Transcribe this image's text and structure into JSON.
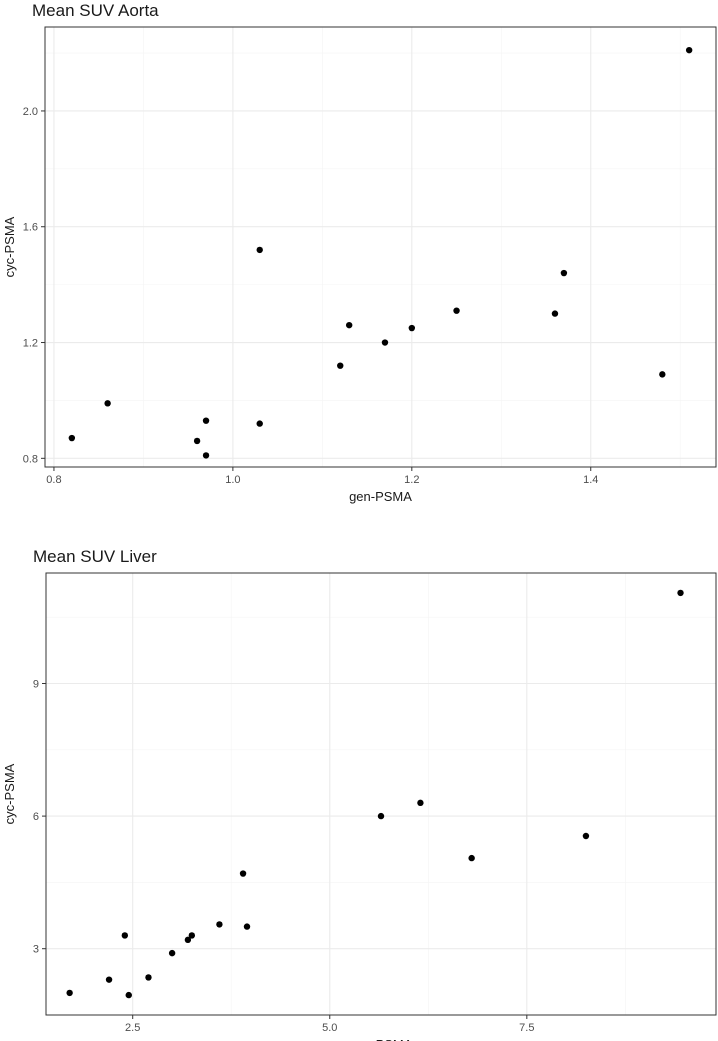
{
  "chart_data": [
    {
      "type": "scatter",
      "title": "Mean SUV Aorta",
      "xlabel": "gen-PSMA",
      "ylabel": "cyc-PSMA",
      "xlim": [
        0.79,
        1.54
      ],
      "ylim": [
        0.77,
        2.29
      ],
      "xticks": [
        0.8,
        1.0,
        1.2,
        1.4
      ],
      "yticks": [
        0.8,
        1.2,
        1.6,
        2.0
      ],
      "xtick_labels": [
        "0.8",
        "1.0",
        "1.2",
        "1.4"
      ],
      "ytick_labels": [
        "0.8",
        "1.2",
        "1.6",
        "2.0"
      ],
      "grid": true,
      "points": [
        {
          "x": 0.82,
          "y": 0.87
        },
        {
          "x": 0.86,
          "y": 0.99
        },
        {
          "x": 0.96,
          "y": 0.86
        },
        {
          "x": 0.97,
          "y": 0.93
        },
        {
          "x": 0.97,
          "y": 0.81
        },
        {
          "x": 1.03,
          "y": 1.52
        },
        {
          "x": 1.03,
          "y": 0.92
        },
        {
          "x": 1.12,
          "y": 1.12
        },
        {
          "x": 1.13,
          "y": 1.26
        },
        {
          "x": 1.17,
          "y": 1.2
        },
        {
          "x": 1.2,
          "y": 1.25
        },
        {
          "x": 1.25,
          "y": 1.31
        },
        {
          "x": 1.36,
          "y": 1.3
        },
        {
          "x": 1.37,
          "y": 1.44
        },
        {
          "x": 1.48,
          "y": 1.09
        },
        {
          "x": 1.51,
          "y": 2.21
        }
      ]
    },
    {
      "type": "scatter",
      "title": "Mean SUV Liver",
      "xlabel": "gen-PSMA",
      "ylabel": "cyc-PSMA",
      "xlim": [
        1.4,
        9.9
      ],
      "ylim": [
        1.5,
        11.5
      ],
      "xticks": [
        2.5,
        5.0,
        7.5
      ],
      "yticks": [
        3,
        6,
        9
      ],
      "xtick_labels": [
        "2.5",
        "5.0",
        "7.5"
      ],
      "ytick_labels": [
        "3",
        "6",
        "9"
      ],
      "grid": true,
      "points": [
        {
          "x": 1.7,
          "y": 2.0
        },
        {
          "x": 2.2,
          "y": 2.3
        },
        {
          "x": 2.4,
          "y": 3.3
        },
        {
          "x": 2.45,
          "y": 1.95
        },
        {
          "x": 2.7,
          "y": 2.35
        },
        {
          "x": 3.0,
          "y": 2.9
        },
        {
          "x": 3.2,
          "y": 3.2
        },
        {
          "x": 3.25,
          "y": 3.3
        },
        {
          "x": 3.6,
          "y": 3.55
        },
        {
          "x": 3.9,
          "y": 4.7
        },
        {
          "x": 3.95,
          "y": 3.5
        },
        {
          "x": 5.65,
          "y": 6.0
        },
        {
          "x": 6.15,
          "y": 6.3
        },
        {
          "x": 6.8,
          "y": 5.05
        },
        {
          "x": 8.25,
          "y": 5.55
        },
        {
          "x": 9.45,
          "y": 11.05
        }
      ]
    }
  ]
}
